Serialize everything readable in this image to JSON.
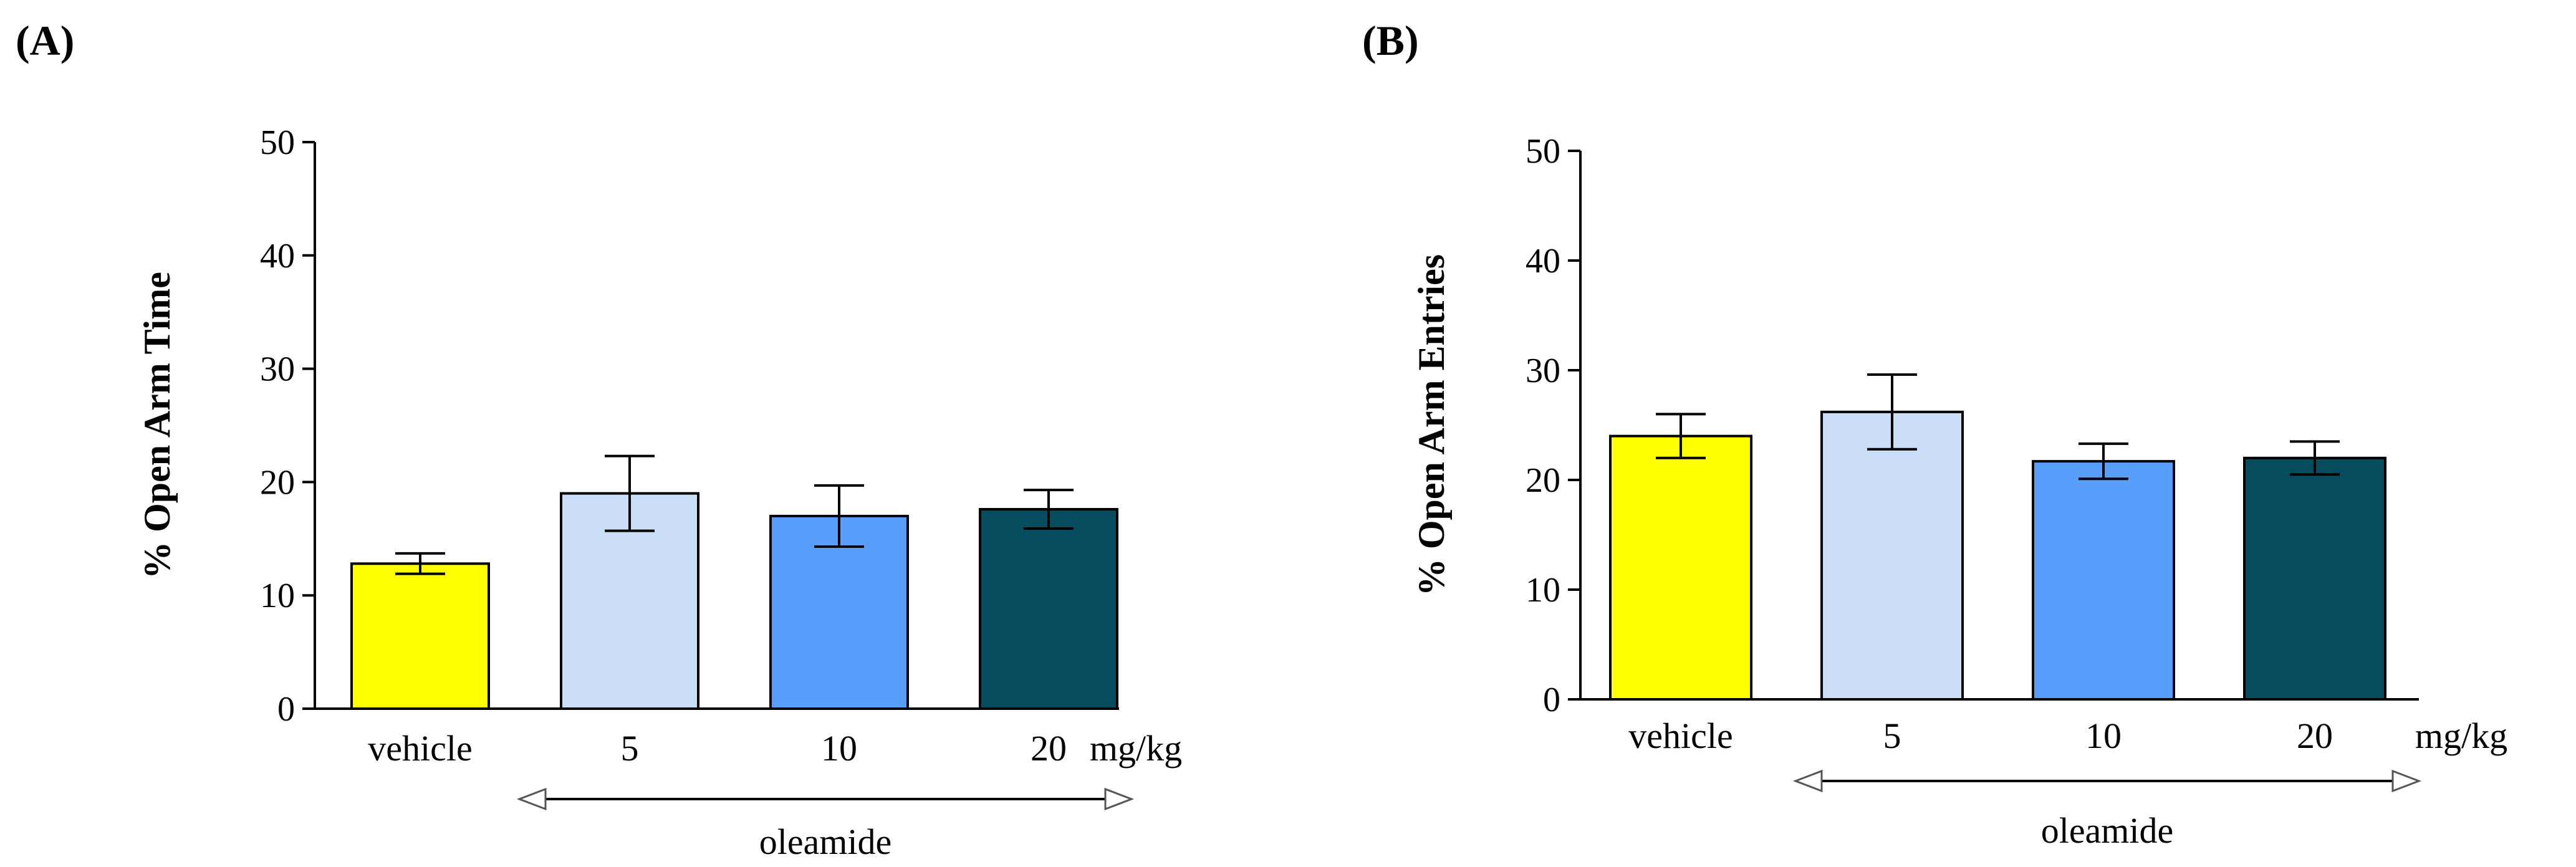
{
  "chart_data": [
    {
      "type": "bar",
      "panel": "(A)",
      "title": "",
      "xlabel": "",
      "ylabel": "%  Open  Arm Time",
      "ylim": [
        0,
        50
      ],
      "yticks": [
        0,
        10,
        20,
        30,
        40,
        50
      ],
      "categories": [
        "vehicle",
        "5",
        "10",
        "20"
      ],
      "unit_label": "mg/kg",
      "group_label": "oleamide",
      "values": [
        12.8,
        19.0,
        17.0,
        17.6
      ],
      "errors": [
        0.9,
        3.3,
        2.7,
        1.7
      ],
      "colors": [
        "#ffff00",
        "#cadff7",
        "#579ffa",
        "#044c5e"
      ]
    },
    {
      "type": "bar",
      "panel": "(B)",
      "title": "",
      "xlabel": "",
      "ylabel": "%  Open Arm Entries",
      "ylim": [
        0,
        50
      ],
      "yticks": [
        0,
        10,
        20,
        30,
        40,
        50
      ],
      "categories": [
        "vehicle",
        "5",
        "10",
        "20"
      ],
      "unit_label": "mg/kg",
      "group_label": "oleamide",
      "values": [
        24.0,
        26.2,
        21.7,
        22.0
      ],
      "errors": [
        2.0,
        3.4,
        1.6,
        1.5
      ],
      "colors": [
        "#ffff00",
        "#cadff7",
        "#579ffa",
        "#044c5e"
      ]
    }
  ]
}
